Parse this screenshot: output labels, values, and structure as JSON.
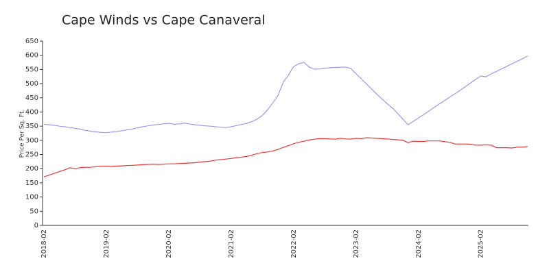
{
  "chart_data": {
    "type": "line",
    "title": "Cape Winds vs Cape Canaveral",
    "y_label": "Price Per Sq. Ft.",
    "categories": [
      "2018-02",
      null,
      null,
      null,
      null,
      null,
      null,
      null,
      null,
      null,
      null,
      null,
      "2019-02",
      null,
      null,
      null,
      null,
      null,
      null,
      null,
      null,
      null,
      null,
      null,
      "2020-02",
      null,
      null,
      null,
      null,
      null,
      null,
      null,
      null,
      null,
      null,
      null,
      "2021-02",
      null,
      null,
      null,
      null,
      null,
      null,
      null,
      null,
      null,
      null,
      null,
      "2022-02",
      null,
      null,
      null,
      null,
      null,
      null,
      null,
      null,
      null,
      null,
      null,
      "2023-02",
      null,
      null,
      null,
      null,
      null,
      null,
      null,
      null,
      null,
      null,
      null,
      "2024-02",
      null,
      null,
      null,
      null,
      null,
      null,
      null,
      null,
      null,
      null,
      null,
      "2025-02",
      null,
      null,
      null,
      null,
      null,
      null,
      null,
      null,
      null
    ],
    "series": [
      {
        "color": "#9999ee",
        "values": [
          357,
          355,
          353,
          350,
          348,
          345,
          342,
          339,
          335,
          332,
          330,
          328,
          327,
          329,
          331,
          334,
          337,
          340,
          344,
          348,
          351,
          354,
          356,
          358,
          360,
          357,
          358,
          361,
          358,
          355,
          353,
          351,
          350,
          348,
          346,
          345,
          348,
          352,
          356,
          360,
          366,
          375,
          388,
          408,
          432,
          458,
          505,
          530,
          560,
          570,
          575,
          558,
          551,
          552,
          554,
          556,
          557,
          558,
          558,
          553,
          535,
          517,
          499,
          481,
          463,
          446,
          429,
          414,
          395,
          375,
          355,
          367,
          379,
          391,
          403,
          416,
          428,
          440,
          452,
          464,
          476,
          489,
          502,
          515,
          527,
          524,
          535,
          543,
          552,
          561,
          570,
          579,
          588,
          597
        ]
      },
      {
        "color": "#ee3333",
        "values": [
          171,
          177,
          184,
          190,
          196,
          203,
          200,
          204,
          205,
          205,
          207,
          208,
          208,
          208,
          209,
          210,
          211,
          212,
          213,
          214,
          215,
          216,
          215,
          216,
          217,
          217,
          218,
          219,
          220,
          221,
          223,
          225,
          227,
          230,
          232,
          234,
          236,
          239,
          241,
          243,
          248,
          253,
          257,
          259,
          262,
          268,
          275,
          281,
          288,
          293,
          297,
          301,
          304,
          306,
          306,
          305,
          304,
          307,
          305,
          304,
          307,
          306,
          309,
          308,
          307,
          306,
          305,
          303,
          302,
          300,
          292,
          297,
          296,
          296,
          298,
          298,
          298,
          295,
          293,
          287,
          287,
          287,
          286,
          283,
          283,
          284,
          283,
          274,
          274,
          274,
          273,
          276,
          276,
          278
        ]
      }
    ],
    "ylim": [
      0,
      650
    ],
    "yticks": [
      0,
      50,
      100,
      150,
      200,
      250,
      300,
      350,
      400,
      450,
      500,
      550,
      600,
      650
    ]
  }
}
